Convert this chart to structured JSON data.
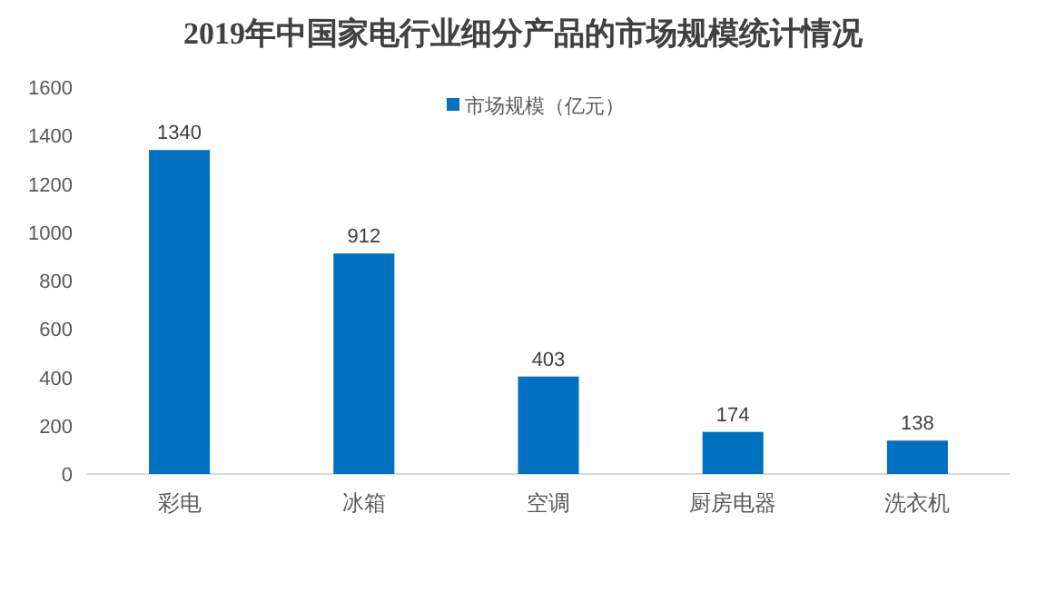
{
  "chart_data": {
    "type": "bar",
    "title": "2019年中国家电行业细分产品的市场规模统计情况",
    "categories": [
      "彩电",
      "冰箱",
      "空调",
      "厨房电器",
      "洗衣机"
    ],
    "series": [
      {
        "name": "市场规模（亿元）",
        "color": "#0070c0",
        "values": [
          1340,
          912,
          403,
          174,
          138
        ]
      }
    ],
    "ylim": [
      0,
      1600
    ],
    "yticks": [
      0,
      200,
      400,
      600,
      800,
      1000,
      1200,
      1400,
      1600
    ],
    "data_labels": true,
    "legend": "top",
    "grid": false
  }
}
